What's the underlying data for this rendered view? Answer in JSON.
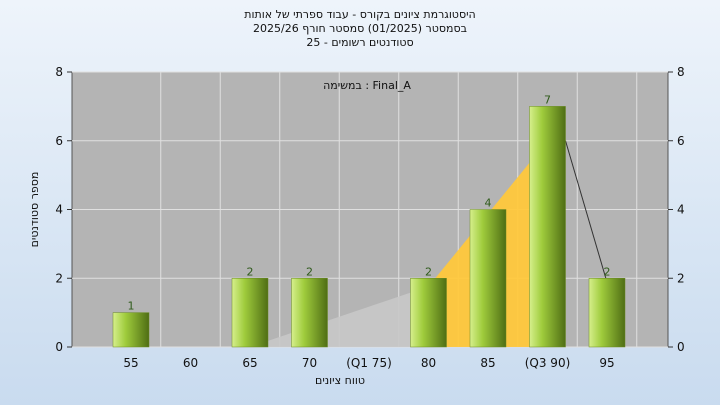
{
  "header": {
    "title_line1": "היסטוגרמת ציונים בקורס - עבוד ספרתי של אותות",
    "title_line2": "בסמסטר  (01/2025)  סמסטר חורף 2025/26",
    "title_line3": "סטודנטים רשומים - 25"
  },
  "chart_data": {
    "type": "bar",
    "title": "היסטוגרמת ציונים בקורס - עבוד ספרתי של אותות",
    "xlabel": "טווח ציונים",
    "ylabel": "מספר סטודנטים",
    "ylim": [
      0,
      8
    ],
    "y_ticks": [
      0,
      2,
      4,
      6,
      8
    ],
    "grid": true,
    "annotation": "Final_A : במשימה",
    "categories": [
      "55",
      "60",
      "65",
      "70",
      "(Q1 75)",
      "80",
      "85",
      "(Q3 90)",
      "95"
    ],
    "values": [
      1,
      0,
      2,
      2,
      0,
      2,
      4,
      7,
      2
    ],
    "data_labels": [
      "1",
      "",
      "2",
      "2",
      "",
      "2",
      "4",
      "7",
      "2"
    ],
    "colors": {
      "plot_bg": "#b4b4b4",
      "bar_light": "#d6ef8c",
      "bar_mid": "#9fcc3c",
      "bar_dark": "#4f6e14",
      "interquartile_fill": "#ffc83c",
      "distribution_fill": "#c8c8c8",
      "label_color": "#2e5a1a"
    }
  }
}
